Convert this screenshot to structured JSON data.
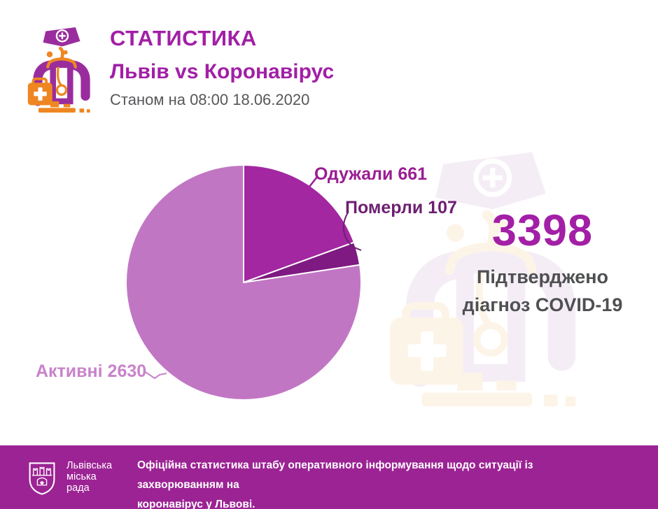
{
  "header": {
    "title": "СТАТИСТИКА",
    "subtitle": "Львів vs Коронавірус",
    "as_of": "Станом на 08:00 18.06.2020"
  },
  "summary": {
    "total": "3398",
    "caption_line1": "Підтверджено",
    "caption_line2": "діагноз COVID-19"
  },
  "chart_data": {
    "type": "pie",
    "total": 3398,
    "start_angle_deg": 0,
    "direction": "clockwise",
    "legend_position": "callout-labels",
    "slices": [
      {
        "key": "recovered",
        "label": "Одужали",
        "value": 661,
        "color": "#a227a0",
        "label_color": "#9a1d92"
      },
      {
        "key": "deceased",
        "label": "Померли",
        "value": 107,
        "color": "#7e1a81",
        "label_color": "#6d1f72"
      },
      {
        "key": "active",
        "label": "Активні",
        "value": 2630,
        "color": "#c176c4",
        "label_color": "#c883ca"
      }
    ]
  },
  "footer": {
    "org_name_line1": "Львівська",
    "org_name_line2": "міська",
    "org_name_line3": "рада",
    "note_line1": "Офіційна статистика штабу оперативного інформування щодо ситуації із захворюванням на",
    "note_line2": "коронавірус у Львові."
  },
  "icons": {
    "doctor": "doctor-with-stethoscope-and-medical-bag",
    "watermark": "doctor-silhouette-watermark",
    "crest": "lviv-city-council-coat-of-arms"
  },
  "theme": {
    "accent": "#a21fa6",
    "text_gray": "#565759",
    "stat_caption_gray": "#4f5052",
    "footer_bg": "#9c2394",
    "doctor_purple": "#9a2d9e",
    "doctor_orange": "#ee8722",
    "watermark_purple": "#f5edf6",
    "watermark_orange": "#fdf4e8"
  }
}
